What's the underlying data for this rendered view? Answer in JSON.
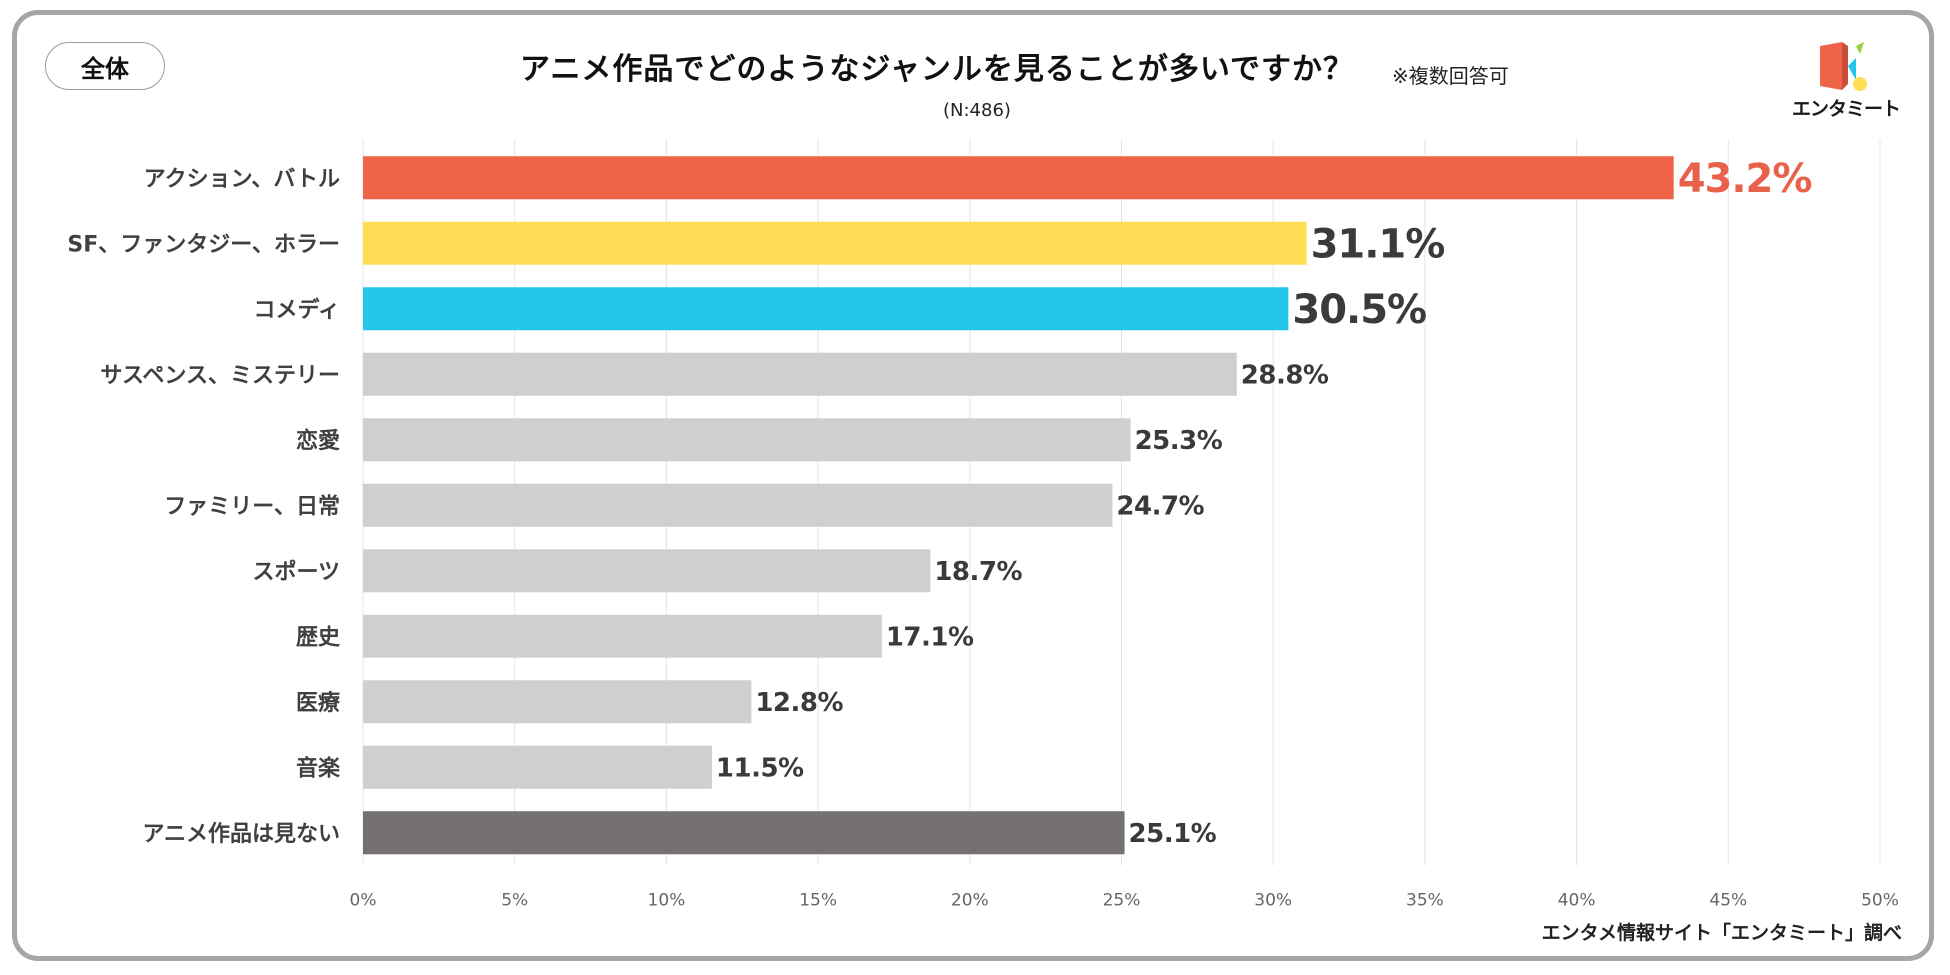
{
  "header": {
    "scope_label": "全体",
    "title": "アニメ作品でどのようなジャンルを見ることが多いですか？",
    "note": "※複数回答可",
    "sample": "(N:486)"
  },
  "logo": {
    "name": "エンタミート",
    "icon": "logo-icon"
  },
  "footer": {
    "source": "エンタメ情報サイト「エンタミート」調べ"
  },
  "colors": {
    "highlight_1": "#ef6449",
    "highlight_2": "#ffdd55",
    "highlight_3": "#25c6ea",
    "default": "#d0cecf",
    "none": "#767171",
    "label_dark": "#3a3a3a",
    "label_red": "#e8614a"
  },
  "chart_data": {
    "type": "bar",
    "orientation": "horizontal",
    "title": "アニメ作品でどのようなジャンルを見ることが多いですか？",
    "categories": [
      "アクション、バトル",
      "SF、ファンタジー、ホラー",
      "コメディ",
      "サスペンス、ミステリー",
      "恋愛",
      "ファミリー、日常",
      "スポーツ",
      "歴史",
      "医療",
      "音楽",
      "アニメ作品は見ない"
    ],
    "values": [
      43.2,
      31.1,
      30.5,
      28.8,
      25.3,
      24.7,
      18.7,
      17.1,
      12.8,
      11.5,
      25.1
    ],
    "value_labels": [
      "43.2%",
      "31.1%",
      "30.5%",
      "28.8%",
      "25.3%",
      "24.7%",
      "18.7%",
      "17.1%",
      "12.8%",
      "11.5%",
      "25.1%"
    ],
    "bar_colors": [
      "#ef6449",
      "#ffdd55",
      "#25c6ea",
      "#d0cecf",
      "#d0cecf",
      "#d0cecf",
      "#d0cecf",
      "#d0cecf",
      "#d0cecf",
      "#d0cecf",
      "#767171"
    ],
    "xlim": [
      0,
      50
    ],
    "xticks": [
      0,
      5,
      10,
      15,
      20,
      25,
      30,
      35,
      40,
      45,
      50
    ],
    "xtick_labels": [
      "0%",
      "5%",
      "10%",
      "15%",
      "20%",
      "25%",
      "30%",
      "35%",
      "40%",
      "45%",
      "50%"
    ],
    "grid": true,
    "unit": "%"
  }
}
